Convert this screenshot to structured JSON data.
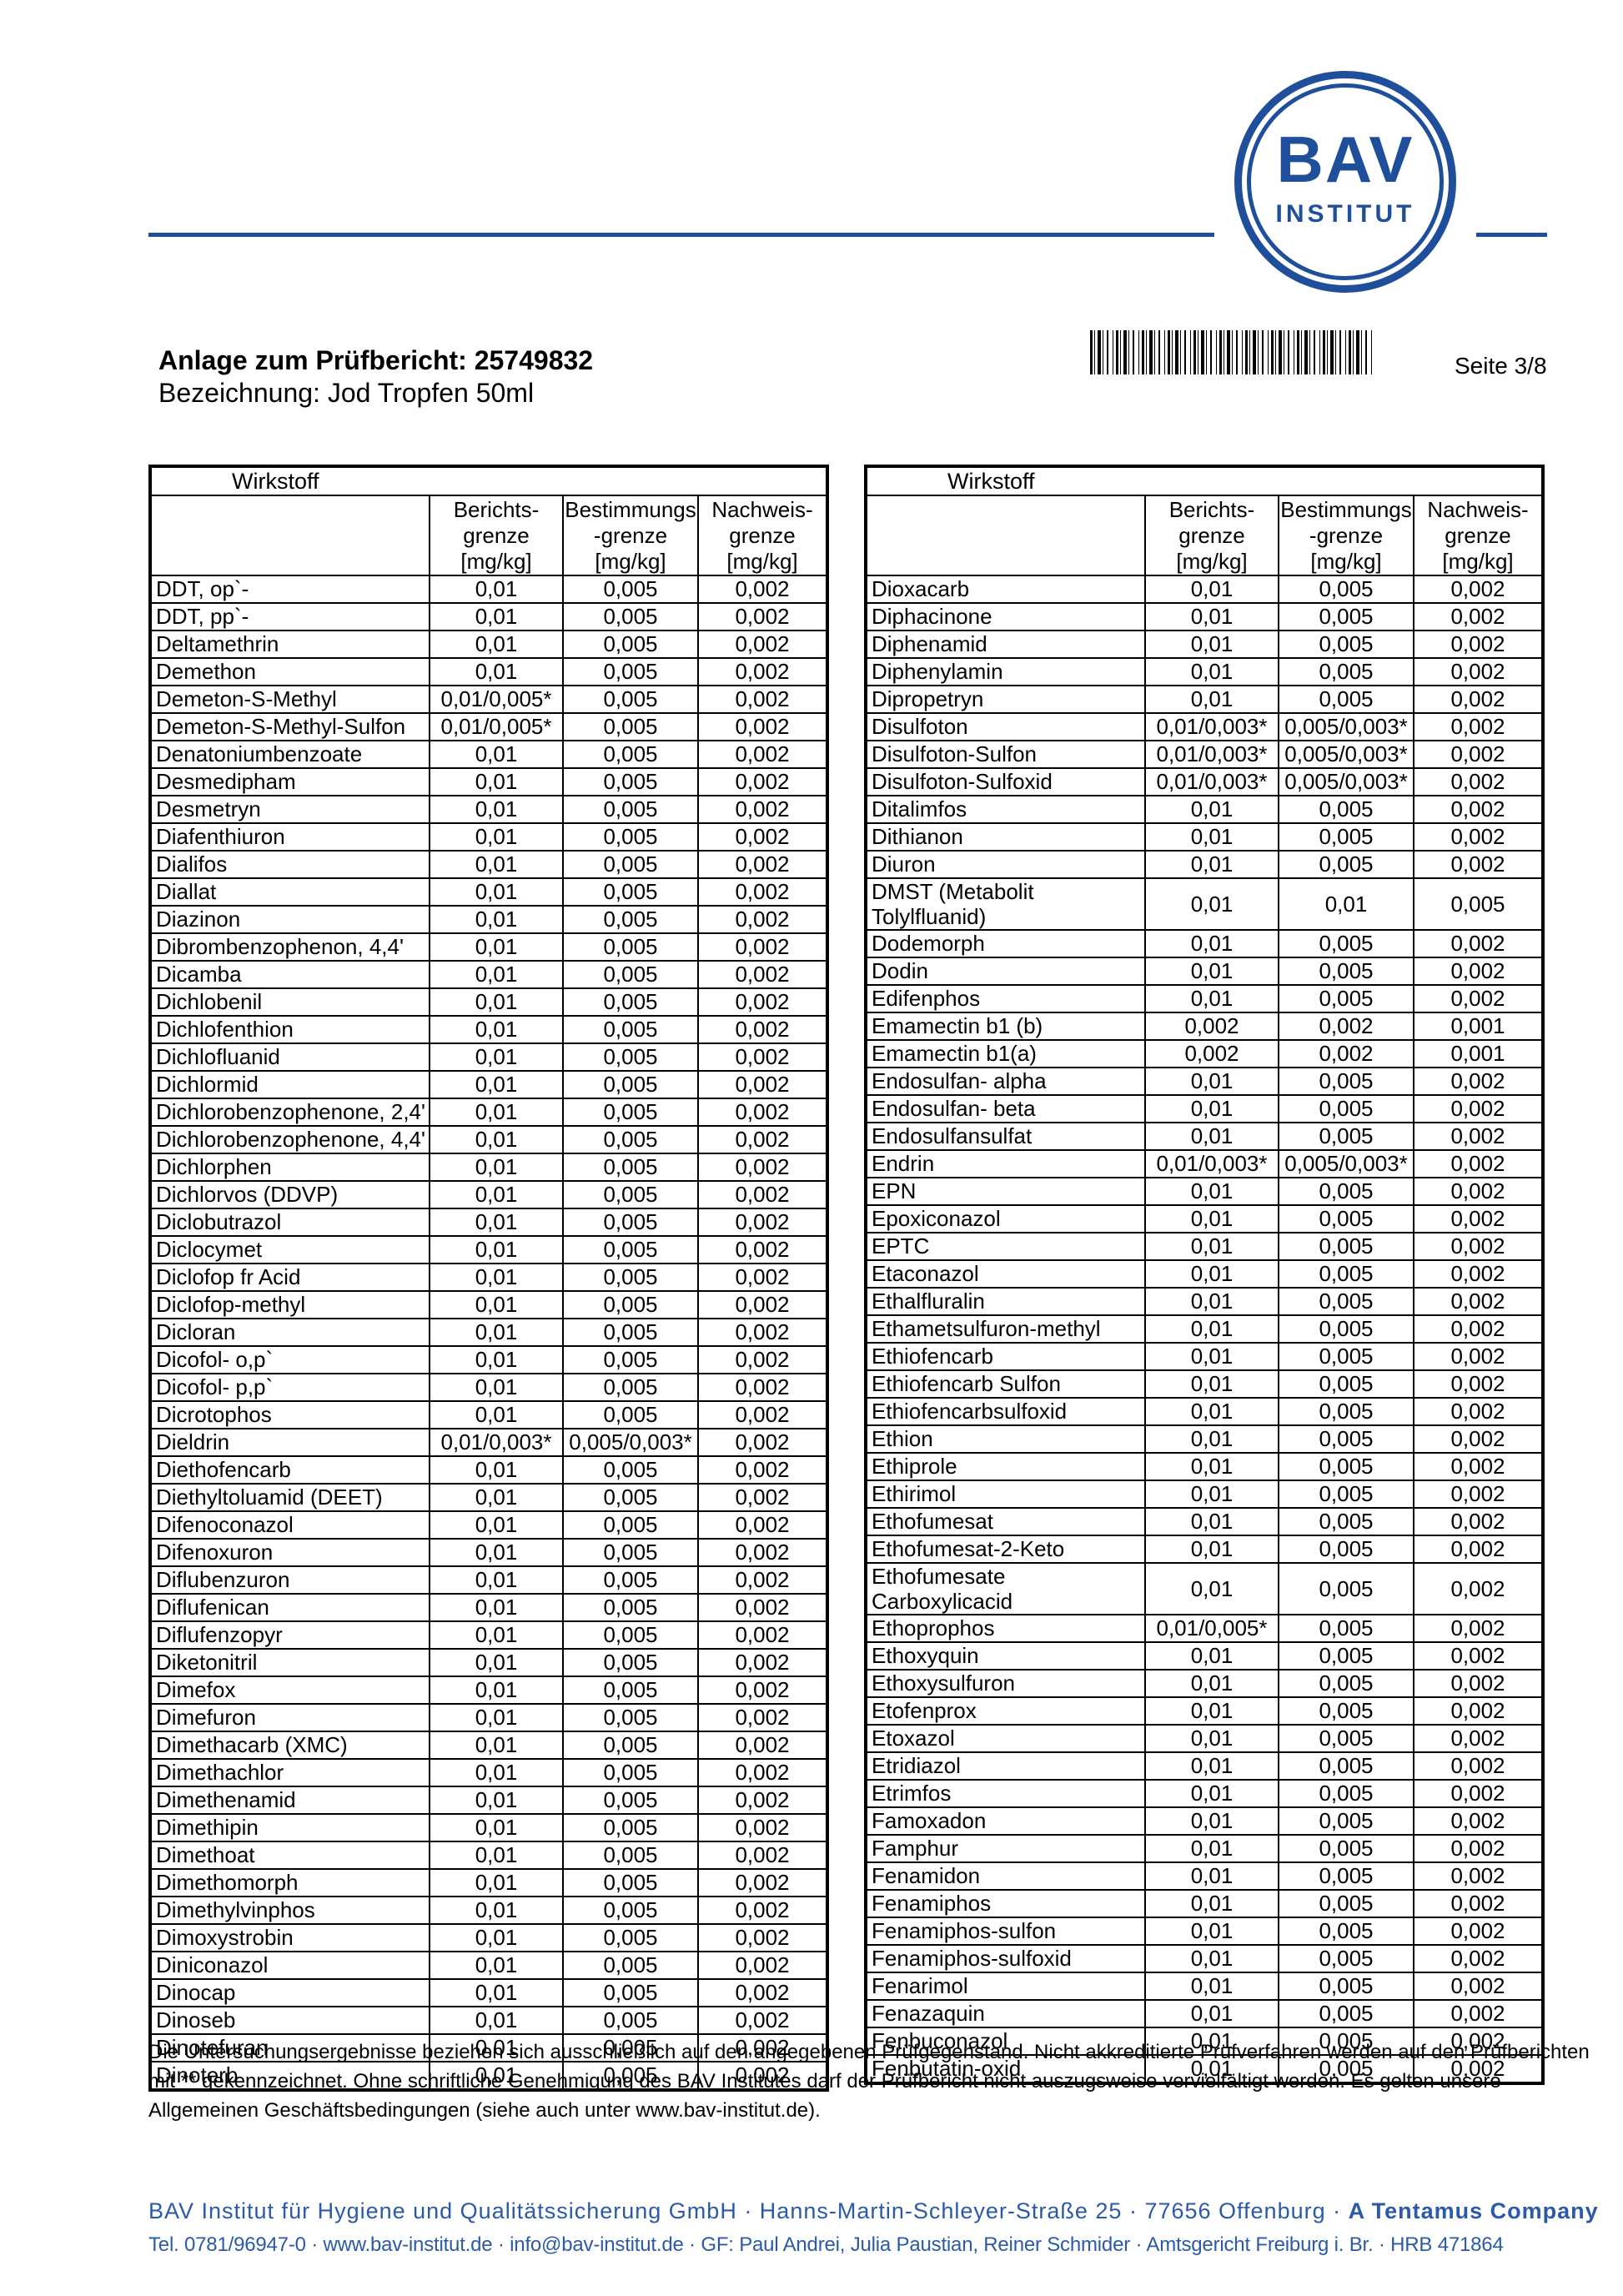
{
  "colors": {
    "brand_blue": "#1f4e9b",
    "address_blue": "#2a5aa8",
    "text": "#000000"
  },
  "header": {
    "logo_line1": "BAV",
    "logo_line2": "INSTITUT",
    "title_line1": "Anlage zum Prüfbericht: 25749832",
    "title_line2": "Bezeichnung: Jod Tropfen 50ml",
    "page_label": "Seite 3/8"
  },
  "table": {
    "header_col1": "Wirkstoff",
    "columns": [
      [
        "Berichts-",
        "grenze",
        "[mg/kg]"
      ],
      [
        "Bestimmungs",
        "-grenze",
        "[mg/kg]"
      ],
      [
        "Nachweis-",
        "grenze",
        "[mg/kg]"
      ]
    ]
  },
  "left_table": {
    "rows": [
      {
        "name": "DDT, op`-",
        "v1": "0,01",
        "v2": "0,005",
        "v3": "0,002"
      },
      {
        "name": "DDT, pp`-",
        "v1": "0,01",
        "v2": "0,005",
        "v3": "0,002"
      },
      {
        "name": "Deltamethrin",
        "v1": "0,01",
        "v2": "0,005",
        "v3": "0,002"
      },
      {
        "name": "Demethon",
        "v1": "0,01",
        "v2": "0,005",
        "v3": "0,002"
      },
      {
        "name": "Demeton-S-Methyl",
        "v1": "0,01/0,005*",
        "v2": "0,005",
        "v3": "0,002"
      },
      {
        "name": "Demeton-S-Methyl-Sulfon",
        "v1": "0,01/0,005*",
        "v2": "0,005",
        "v3": "0,002"
      },
      {
        "name": "Denatoniumbenzoate",
        "v1": "0,01",
        "v2": "0,005",
        "v3": "0,002"
      },
      {
        "name": "Desmedipham",
        "v1": "0,01",
        "v2": "0,005",
        "v3": "0,002"
      },
      {
        "name": "Desmetryn",
        "v1": "0,01",
        "v2": "0,005",
        "v3": "0,002"
      },
      {
        "name": "Diafenthiuron",
        "v1": "0,01",
        "v2": "0,005",
        "v3": "0,002"
      },
      {
        "name": "Dialifos",
        "v1": "0,01",
        "v2": "0,005",
        "v3": "0,002"
      },
      {
        "name": "Diallat",
        "v1": "0,01",
        "v2": "0,005",
        "v3": "0,002"
      },
      {
        "name": "Diazinon",
        "v1": "0,01",
        "v2": "0,005",
        "v3": "0,002"
      },
      {
        "name": "Dibrombenzophenon, 4,4'",
        "v1": "0,01",
        "v2": "0,005",
        "v3": "0,002"
      },
      {
        "name": "Dicamba",
        "v1": "0,01",
        "v2": "0,005",
        "v3": "0,002"
      },
      {
        "name": "Dichlobenil",
        "v1": "0,01",
        "v2": "0,005",
        "v3": "0,002"
      },
      {
        "name": "Dichlofenthion",
        "v1": "0,01",
        "v2": "0,005",
        "v3": "0,002"
      },
      {
        "name": "Dichlofluanid",
        "v1": "0,01",
        "v2": "0,005",
        "v3": "0,002"
      },
      {
        "name": "Dichlormid",
        "v1": "0,01",
        "v2": "0,005",
        "v3": "0,002"
      },
      {
        "name": "Dichlorobenzophenone, 2,4'",
        "v1": "0,01",
        "v2": "0,005",
        "v3": "0,002"
      },
      {
        "name": "Dichlorobenzophenone, 4,4'",
        "v1": "0,01",
        "v2": "0,005",
        "v3": "0,002"
      },
      {
        "name": "Dichlorphen",
        "v1": "0,01",
        "v2": "0,005",
        "v3": "0,002"
      },
      {
        "name": "Dichlorvos (DDVP)",
        "v1": "0,01",
        "v2": "0,005",
        "v3": "0,002"
      },
      {
        "name": "Diclobutrazol",
        "v1": "0,01",
        "v2": "0,005",
        "v3": "0,002"
      },
      {
        "name": "Diclocymet",
        "v1": "0,01",
        "v2": "0,005",
        "v3": "0,002"
      },
      {
        "name": "Diclofop fr Acid",
        "v1": "0,01",
        "v2": "0,005",
        "v3": "0,002"
      },
      {
        "name": "Diclofop-methyl",
        "v1": "0,01",
        "v2": "0,005",
        "v3": "0,002"
      },
      {
        "name": "Dicloran",
        "v1": "0,01",
        "v2": "0,005",
        "v3": "0,002"
      },
      {
        "name": "Dicofol- o,p`",
        "v1": "0,01",
        "v2": "0,005",
        "v3": "0,002"
      },
      {
        "name": "Dicofol- p,p`",
        "v1": "0,01",
        "v2": "0,005",
        "v3": "0,002"
      },
      {
        "name": "Dicrotophos",
        "v1": "0,01",
        "v2": "0,005",
        "v3": "0,002"
      },
      {
        "name": "Dieldrin",
        "v1": "0,01/0,003*",
        "v2": "0,005/0,003*",
        "v3": "0,002"
      },
      {
        "name": "Diethofencarb",
        "v1": "0,01",
        "v2": "0,005",
        "v3": "0,002"
      },
      {
        "name": "Diethyltoluamid (DEET)",
        "v1": "0,01",
        "v2": "0,005",
        "v3": "0,002"
      },
      {
        "name": "Difenoconazol",
        "v1": "0,01",
        "v2": "0,005",
        "v3": "0,002"
      },
      {
        "name": "Difenoxuron",
        "v1": "0,01",
        "v2": "0,005",
        "v3": "0,002"
      },
      {
        "name": "Diflubenzuron",
        "v1": "0,01",
        "v2": "0,005",
        "v3": "0,002"
      },
      {
        "name": "Diflufenican",
        "v1": "0,01",
        "v2": "0,005",
        "v3": "0,002"
      },
      {
        "name": "Diflufenzopyr",
        "v1": "0,01",
        "v2": "0,005",
        "v3": "0,002"
      },
      {
        "name": "Diketonitril",
        "v1": "0,01",
        "v2": "0,005",
        "v3": "0,002"
      },
      {
        "name": "Dimefox",
        "v1": "0,01",
        "v2": "0,005",
        "v3": "0,002"
      },
      {
        "name": "Dimefuron",
        "v1": "0,01",
        "v2": "0,005",
        "v3": "0,002"
      },
      {
        "name": "Dimethacarb (XMC)",
        "v1": "0,01",
        "v2": "0,005",
        "v3": "0,002"
      },
      {
        "name": "Dimethachlor",
        "v1": "0,01",
        "v2": "0,005",
        "v3": "0,002"
      },
      {
        "name": "Dimethenamid",
        "v1": "0,01",
        "v2": "0,005",
        "v3": "0,002"
      },
      {
        "name": "Dimethipin",
        "v1": "0,01",
        "v2": "0,005",
        "v3": "0,002"
      },
      {
        "name": "Dimethoat",
        "v1": "0,01",
        "v2": "0,005",
        "v3": "0,002"
      },
      {
        "name": "Dimethomorph",
        "v1": "0,01",
        "v2": "0,005",
        "v3": "0,002"
      },
      {
        "name": "Dimethylvinphos",
        "v1": "0,01",
        "v2": "0,005",
        "v3": "0,002"
      },
      {
        "name": "Dimoxystrobin",
        "v1": "0,01",
        "v2": "0,005",
        "v3": "0,002"
      },
      {
        "name": "Diniconazol",
        "v1": "0,01",
        "v2": "0,005",
        "v3": "0,002"
      },
      {
        "name": "Dinocap",
        "v1": "0,01",
        "v2": "0,005",
        "v3": "0,002"
      },
      {
        "name": "Dinoseb",
        "v1": "0,01",
        "v2": "0,005",
        "v3": "0,002"
      },
      {
        "name": "Dinotefuran",
        "v1": "0,01",
        "v2": "0,005",
        "v3": "0,002"
      },
      {
        "name": "Dinoterb",
        "v1": "0,01",
        "v2": "0,005",
        "v3": "0,002"
      }
    ]
  },
  "right_table": {
    "rows": [
      {
        "name": "Dioxacarb",
        "v1": "0,01",
        "v2": "0,005",
        "v3": "0,002"
      },
      {
        "name": "Diphacinone",
        "v1": "0,01",
        "v2": "0,005",
        "v3": "0,002"
      },
      {
        "name": "Diphenamid",
        "v1": "0,01",
        "v2": "0,005",
        "v3": "0,002"
      },
      {
        "name": "Diphenylamin",
        "v1": "0,01",
        "v2": "0,005",
        "v3": "0,002"
      },
      {
        "name": "Dipropetryn",
        "v1": "0,01",
        "v2": "0,005",
        "v3": "0,002"
      },
      {
        "name": "Disulfoton",
        "v1": "0,01/0,003*",
        "v2": "0,005/0,003*",
        "v3": "0,002"
      },
      {
        "name": "Disulfoton-Sulfon",
        "v1": "0,01/0,003*",
        "v2": "0,005/0,003*",
        "v3": "0,002"
      },
      {
        "name": "Disulfoton-Sulfoxid",
        "v1": "0,01/0,003*",
        "v2": "0,005/0,003*",
        "v3": "0,002"
      },
      {
        "name": "Ditalimfos",
        "v1": "0,01",
        "v2": "0,005",
        "v3": "0,002"
      },
      {
        "name": "Dithianon",
        "v1": "0,01",
        "v2": "0,005",
        "v3": "0,002"
      },
      {
        "name": "Diuron",
        "v1": "0,01",
        "v2": "0,005",
        "v3": "0,002"
      },
      {
        "name": "DMST (Metabolit Tolylfluanid)",
        "v1": "0,01",
        "v2": "0,01",
        "v3": "0,005",
        "tall": true
      },
      {
        "name": "Dodemorph",
        "v1": "0,01",
        "v2": "0,005",
        "v3": "0,002"
      },
      {
        "name": "Dodin",
        "v1": "0,01",
        "v2": "0,005",
        "v3": "0,002"
      },
      {
        "name": "Edifenphos",
        "v1": "0,01",
        "v2": "0,005",
        "v3": "0,002"
      },
      {
        "name": "Emamectin b1 (b)",
        "v1": "0,002",
        "v2": "0,002",
        "v3": "0,001"
      },
      {
        "name": "Emamectin b1(a)",
        "v1": "0,002",
        "v2": "0,002",
        "v3": "0,001"
      },
      {
        "name": "Endosulfan- alpha",
        "v1": "0,01",
        "v2": "0,005",
        "v3": "0,002"
      },
      {
        "name": "Endosulfan- beta",
        "v1": "0,01",
        "v2": "0,005",
        "v3": "0,002"
      },
      {
        "name": "Endosulfansulfat",
        "v1": "0,01",
        "v2": "0,005",
        "v3": "0,002"
      },
      {
        "name": "Endrin",
        "v1": "0,01/0,003*",
        "v2": "0,005/0,003*",
        "v3": "0,002"
      },
      {
        "name": "EPN",
        "v1": "0,01",
        "v2": "0,005",
        "v3": "0,002"
      },
      {
        "name": "Epoxiconazol",
        "v1": "0,01",
        "v2": "0,005",
        "v3": "0,002"
      },
      {
        "name": "EPTC",
        "v1": "0,01",
        "v2": "0,005",
        "v3": "0,002"
      },
      {
        "name": "Etaconazol",
        "v1": "0,01",
        "v2": "0,005",
        "v3": "0,002"
      },
      {
        "name": "Ethalfluralin",
        "v1": "0,01",
        "v2": "0,005",
        "v3": "0,002"
      },
      {
        "name": "Ethametsulfuron-methyl",
        "v1": "0,01",
        "v2": "0,005",
        "v3": "0,002"
      },
      {
        "name": "Ethiofencarb",
        "v1": "0,01",
        "v2": "0,005",
        "v3": "0,002"
      },
      {
        "name": "Ethiofencarb Sulfon",
        "v1": "0,01",
        "v2": "0,005",
        "v3": "0,002"
      },
      {
        "name": "Ethiofencarbsulfoxid",
        "v1": "0,01",
        "v2": "0,005",
        "v3": "0,002"
      },
      {
        "name": "Ethion",
        "v1": "0,01",
        "v2": "0,005",
        "v3": "0,002"
      },
      {
        "name": "Ethiprole",
        "v1": "0,01",
        "v2": "0,005",
        "v3": "0,002"
      },
      {
        "name": "Ethirimol",
        "v1": "0,01",
        "v2": "0,005",
        "v3": "0,002"
      },
      {
        "name": "Ethofumesat",
        "v1": "0,01",
        "v2": "0,005",
        "v3": "0,002"
      },
      {
        "name": "Ethofumesat-2-Keto",
        "v1": "0,01",
        "v2": "0,005",
        "v3": "0,002"
      },
      {
        "name": "Ethofumesate Carboxylicacid",
        "v1": "0,01",
        "v2": "0,005",
        "v3": "0,002",
        "tall": true
      },
      {
        "name": "Ethoprophos",
        "v1": "0,01/0,005*",
        "v2": "0,005",
        "v3": "0,002"
      },
      {
        "name": "Ethoxyquin",
        "v1": "0,01",
        "v2": "0,005",
        "v3": "0,002"
      },
      {
        "name": "Ethoxysulfuron",
        "v1": "0,01",
        "v2": "0,005",
        "v3": "0,002"
      },
      {
        "name": "Etofenprox",
        "v1": "0,01",
        "v2": "0,005",
        "v3": "0,002"
      },
      {
        "name": "Etoxazol",
        "v1": "0,01",
        "v2": "0,005",
        "v3": "0,002"
      },
      {
        "name": "Etridiazol",
        "v1": "0,01",
        "v2": "0,005",
        "v3": "0,002"
      },
      {
        "name": "Etrimfos",
        "v1": "0,01",
        "v2": "0,005",
        "v3": "0,002"
      },
      {
        "name": "Famoxadon",
        "v1": "0,01",
        "v2": "0,005",
        "v3": "0,002"
      },
      {
        "name": "Famphur",
        "v1": "0,01",
        "v2": "0,005",
        "v3": "0,002"
      },
      {
        "name": "Fenamidon",
        "v1": "0,01",
        "v2": "0,005",
        "v3": "0,002"
      },
      {
        "name": "Fenamiphos",
        "v1": "0,01",
        "v2": "0,005",
        "v3": "0,002"
      },
      {
        "name": "Fenamiphos-sulfon",
        "v1": "0,01",
        "v2": "0,005",
        "v3": "0,002"
      },
      {
        "name": "Fenamiphos-sulfoxid",
        "v1": "0,01",
        "v2": "0,005",
        "v3": "0,002"
      },
      {
        "name": "Fenarimol",
        "v1": "0,01",
        "v2": "0,005",
        "v3": "0,002"
      },
      {
        "name": "Fenazaquin",
        "v1": "0,01",
        "v2": "0,005",
        "v3": "0,002"
      },
      {
        "name": "Fenbuconazol",
        "v1": "0,01",
        "v2": "0,005",
        "v3": "0,002"
      },
      {
        "name": "Fenbutatin-oxid",
        "v1": "0,01",
        "v2": "0,005",
        "v3": "0,002"
      }
    ]
  },
  "footnote": {
    "lines": [
      "Die Untersuchungsergebnisse beziehen sich ausschließlich auf den angegebenen Prüfgegenstand. Nicht akkreditierte Prüfverfahren werden auf den Prüfberichten",
      "mit ** gekennzeichnet. Ohne schriftliche Genehmigung des BAV Institutes darf der Prüfbericht nicht auszugsweise vervielfältigt werden. Es gelten unsere",
      "Allgemeinen Geschäftsbedingungen (siehe auch unter www.bav-institut.de)."
    ]
  },
  "address": {
    "line1_text": "BAV Institut für Hygiene und Qualitätssicherung GmbH · Hanns-Martin-Schleyer-Straße 25 · 77656 Offenburg · ",
    "line1_bold": "A Tentamus Company",
    "line2_text": "Tel. 0781/96947-0 · www.bav-institut.de · info@bav-institut.de · GF: Paul Andrei, Julia Paustian, Reiner Schmider · Amtsgericht Freiburg i. Br. · HRB 471864"
  }
}
